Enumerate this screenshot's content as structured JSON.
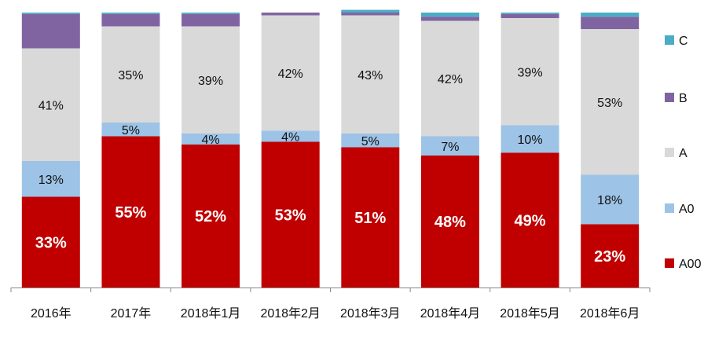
{
  "chart_data": {
    "type": "bar",
    "stacked": true,
    "normalized": true,
    "categories": [
      "2016年",
      "2017年",
      "2018年1月",
      "2018年2月",
      "2018年3月",
      "2018年4月",
      "2018年5月",
      "2018年6月"
    ],
    "series": [
      {
        "name": "A00",
        "color": "#c00000",
        "values": [
          33,
          55,
          52,
          53,
          51,
          48,
          49,
          23
        ],
        "labels": [
          "33%",
          "55%",
          "52%",
          "53%",
          "51%",
          "48%",
          "49%",
          "23%"
        ]
      },
      {
        "name": "A0",
        "color": "#9dc3e6",
        "values": [
          13,
          5,
          4,
          4,
          5,
          7,
          10,
          18
        ],
        "labels": [
          "13%",
          "5%",
          "4%",
          "4%",
          "5%",
          "7%",
          "10%",
          "18%"
        ]
      },
      {
        "name": "A",
        "color": "#d9d9d9",
        "values": [
          41,
          35,
          39,
          42,
          43,
          42,
          39,
          53
        ],
        "labels": [
          "41%",
          "35%",
          "39%",
          "42%",
          "43%",
          "42%",
          "39%",
          "53%"
        ]
      },
      {
        "name": "B",
        "color": "#8064a2",
        "values": [
          12.5,
          4.5,
          4.5,
          1,
          1,
          1.5,
          1.5,
          4.5
        ],
        "labels": [
          "",
          "",
          "",
          "",
          "",
          "",
          "",
          ""
        ]
      },
      {
        "name": "C",
        "color": "#4bacc6",
        "values": [
          0.5,
          0.5,
          0.5,
          0,
          1,
          1.5,
          0.5,
          1.5
        ],
        "labels": [
          "",
          "",
          "",
          "",
          "",
          "",
          "",
          ""
        ]
      }
    ],
    "ylim": [
      0,
      100
    ],
    "legend_position": "right",
    "grid": false
  }
}
